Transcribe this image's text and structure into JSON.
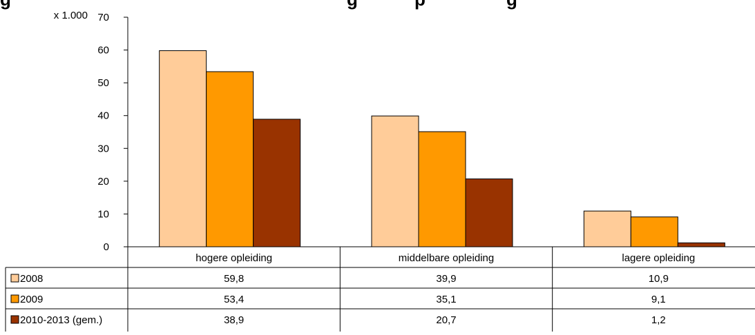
{
  "chart_data": {
    "type": "bar",
    "title_fragment_left": "g",
    "title_fragment_mid": "g",
    "title_fragment_right": "p",
    "title_fragment_end": "g",
    "unit_label": "x 1.000",
    "categories": [
      "hogere opleiding",
      "middelbare opleiding",
      "lagere opleiding"
    ],
    "series": [
      {
        "name": "2008",
        "values": [
          59.8,
          39.9,
          10.9
        ],
        "labels": [
          "59,8",
          "39,9",
          "10,9"
        ],
        "color": "#FFCC99"
      },
      {
        "name": "2009",
        "values": [
          53.4,
          35.1,
          9.1
        ],
        "labels": [
          "53,4",
          "35,1",
          "9,1"
        ],
        "color": "#FF9900"
      },
      {
        "name": "2010-2013 (gem.)",
        "values": [
          38.9,
          20.7,
          1.2
        ],
        "labels": [
          "38,9",
          "20,7",
          "1,2"
        ],
        "color": "#993300"
      }
    ],
    "y_ticks": [
      "0",
      "10",
      "20",
      "30",
      "40",
      "50",
      "60",
      "70"
    ],
    "ylim": [
      0,
      70
    ],
    "grid": false,
    "legend": "data-table"
  }
}
